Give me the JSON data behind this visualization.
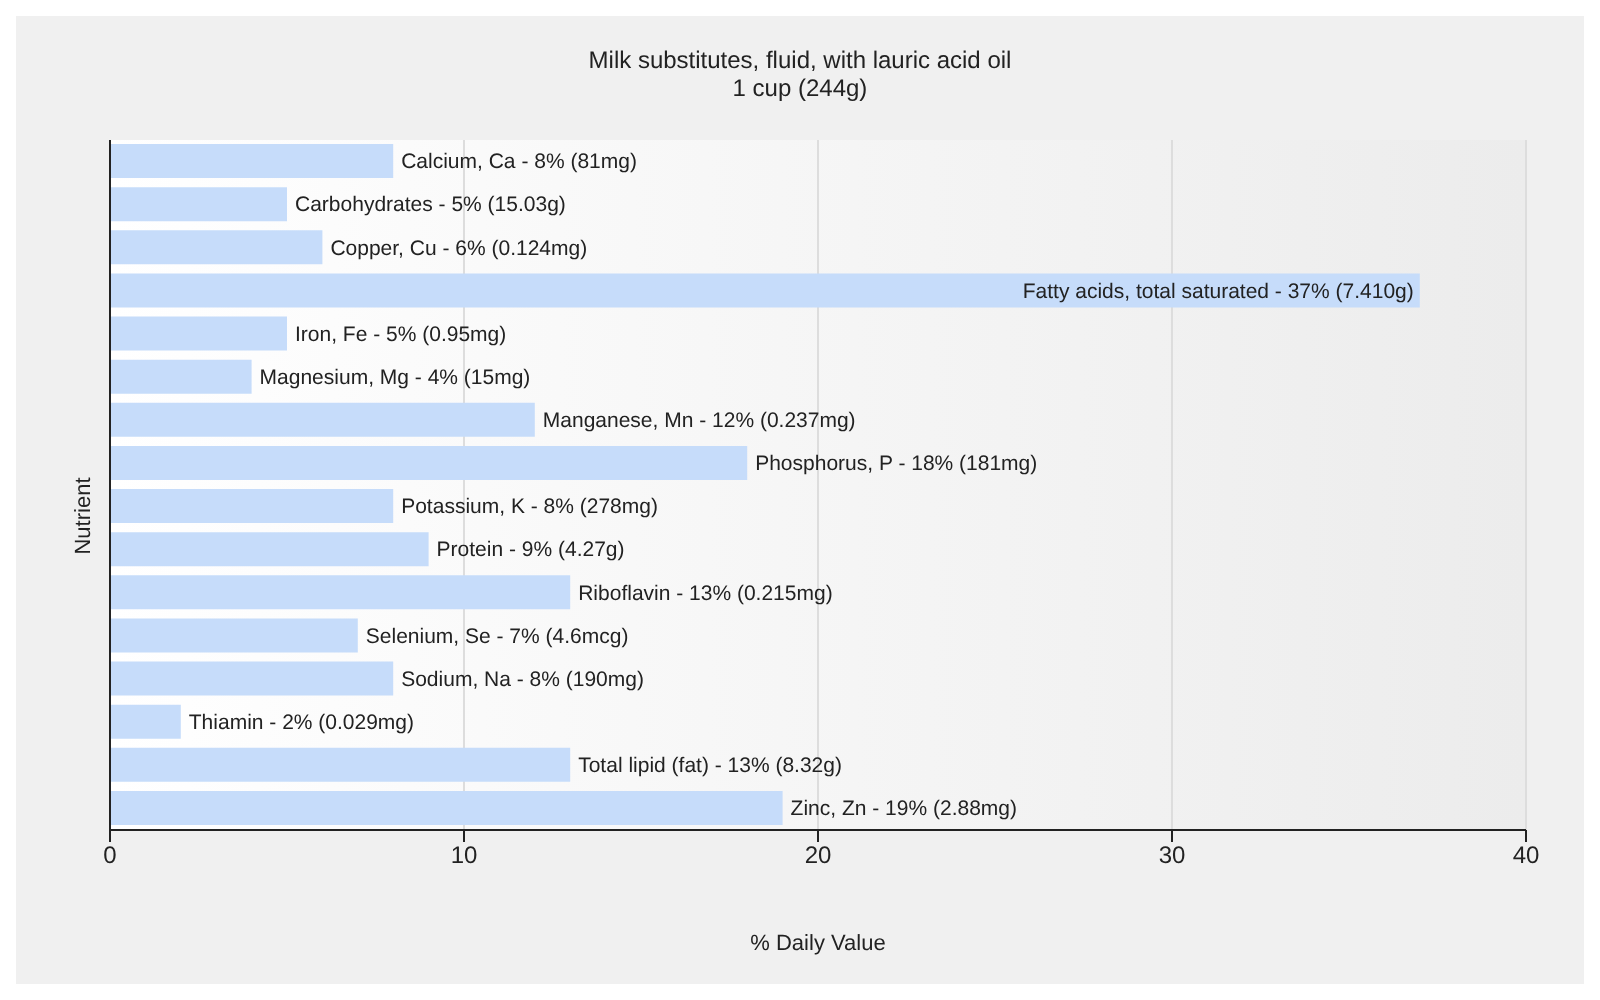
{
  "chart_data": {
    "type": "bar",
    "orientation": "horizontal",
    "title": "Milk substitutes, fluid, with lauric acid oil",
    "subtitle": "1 cup (244g)",
    "xlabel": "% Daily Value",
    "ylabel": "Nutrient",
    "categories": [
      "Calcium, Ca -",
      "Carbohydrates -",
      "Copper, Cu -",
      "Fatty acids, total saturated -",
      "Iron, Fe -",
      "Magnesium, Mg -",
      "Manganese, Mn -",
      "Phosphorus, P -",
      "Potassium, K -",
      "Protein -",
      "Riboflavin -",
      "Selenium, Se -",
      "Sodium, Na -",
      "Thiamin -",
      "Total lipid (fat) -",
      "Zinc, Zn -"
    ],
    "values": [
      8,
      5,
      6,
      37,
      5,
      4,
      12,
      18,
      8,
      9,
      13,
      7,
      8,
      2,
      13,
      19
    ],
    "value_labels": [
      "8% (81mg)",
      "5% (15.03g)",
      "6% (0.124mg)",
      "37% (7.410g)",
      "5% (0.95mg)",
      "4% (15mg)",
      "12% (0.237mg)",
      "18% (181mg)",
      "8% (278mg)",
      "9% (4.27g)",
      "13% (0.215mg)",
      "7% (4.6mcg)",
      "8% (190mg)",
      "2% (0.029mg)",
      "13% (8.32g)",
      "19% (2.88mg)"
    ],
    "color": "#c6dcfa",
    "xlim": [
      0,
      40
    ],
    "xticks": [
      0,
      10,
      20,
      30,
      40
    ],
    "grid": "x",
    "tick_labels": "x"
  }
}
